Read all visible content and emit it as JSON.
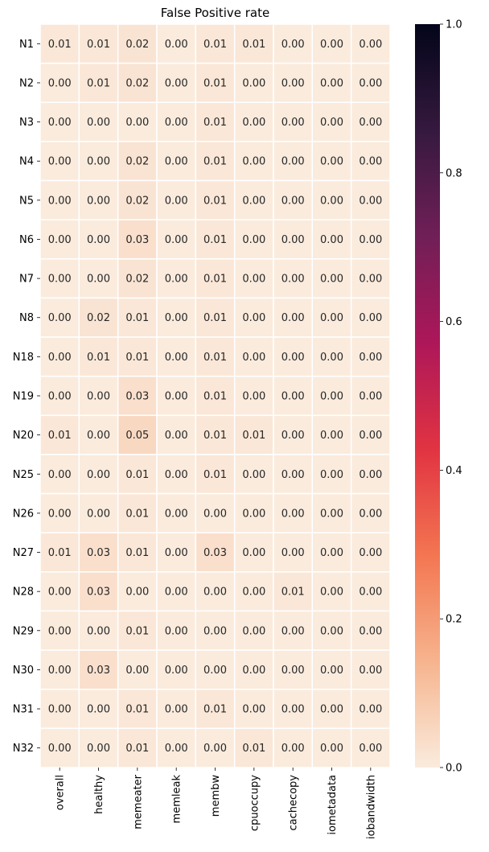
{
  "chart_data": {
    "type": "heatmap",
    "title": "False Positive rate",
    "rows": [
      "N1",
      "N2",
      "N3",
      "N4",
      "N5",
      "N6",
      "N7",
      "N8",
      "N18",
      "N19",
      "N20",
      "N25",
      "N26",
      "N27",
      "N28",
      "N29",
      "N30",
      "N31",
      "N32"
    ],
    "columns": [
      "overall",
      "healthy",
      "memeater",
      "memleak",
      "membw",
      "cpuoccupy",
      "cachecopy",
      "iometadata",
      "iobandwidth"
    ],
    "values": [
      [
        0.01,
        0.01,
        0.02,
        0.0,
        0.01,
        0.01,
        0.0,
        0.0,
        0.0
      ],
      [
        0.0,
        0.01,
        0.02,
        0.0,
        0.01,
        0.0,
        0.0,
        0.0,
        0.0
      ],
      [
        0.0,
        0.0,
        0.0,
        0.0,
        0.01,
        0.0,
        0.0,
        0.0,
        0.0
      ],
      [
        0.0,
        0.0,
        0.02,
        0.0,
        0.01,
        0.0,
        0.0,
        0.0,
        0.0
      ],
      [
        0.0,
        0.0,
        0.02,
        0.0,
        0.01,
        0.0,
        0.0,
        0.0,
        0.0
      ],
      [
        0.0,
        0.0,
        0.03,
        0.0,
        0.01,
        0.0,
        0.0,
        0.0,
        0.0
      ],
      [
        0.0,
        0.0,
        0.02,
        0.0,
        0.01,
        0.0,
        0.0,
        0.0,
        0.0
      ],
      [
        0.0,
        0.02,
        0.01,
        0.0,
        0.01,
        0.0,
        0.0,
        0.0,
        0.0
      ],
      [
        0.0,
        0.01,
        0.01,
        0.0,
        0.01,
        0.0,
        0.0,
        0.0,
        0.0
      ],
      [
        0.0,
        0.0,
        0.03,
        0.0,
        0.01,
        0.0,
        0.0,
        0.0,
        0.0
      ],
      [
        0.01,
        0.0,
        0.05,
        0.0,
        0.01,
        0.01,
        0.0,
        0.0,
        0.0
      ],
      [
        0.0,
        0.0,
        0.01,
        0.0,
        0.01,
        0.0,
        0.0,
        0.0,
        0.0
      ],
      [
        0.0,
        0.0,
        0.01,
        0.0,
        0.0,
        0.0,
        0.0,
        0.0,
        0.0
      ],
      [
        0.01,
        0.03,
        0.01,
        0.0,
        0.03,
        0.0,
        0.0,
        0.0,
        0.0
      ],
      [
        0.0,
        0.03,
        0.0,
        0.0,
        0.0,
        0.0,
        0.01,
        0.0,
        0.0
      ],
      [
        0.0,
        0.0,
        0.01,
        0.0,
        0.0,
        0.0,
        0.0,
        0.0,
        0.0
      ],
      [
        0.0,
        0.03,
        0.0,
        0.0,
        0.0,
        0.0,
        0.0,
        0.0,
        0.0
      ],
      [
        0.0,
        0.0,
        0.01,
        0.0,
        0.01,
        0.0,
        0.0,
        0.0,
        0.0
      ],
      [
        0.0,
        0.0,
        0.01,
        0.0,
        0.0,
        0.01,
        0.0,
        0.0,
        0.0
      ]
    ],
    "value_format": "0.00",
    "colorbar": {
      "range": [
        0.0,
        1.0
      ],
      "ticks": [
        0.0,
        0.2,
        0.4,
        0.6,
        0.8,
        1.0
      ],
      "tick_labels": [
        "0.0",
        "0.2",
        "0.4",
        "0.6",
        "0.8",
        "1.0"
      ],
      "colormap": "rocket_r"
    },
    "colormap_stops": [
      "#faebdd",
      "#f6b48e",
      "#f37651",
      "#e13342",
      "#ad1759",
      "#701f57",
      "#35193e",
      "#03051a"
    ],
    "cell_border_color": "#ffffff",
    "grid": false,
    "legend": "colorbar-right"
  }
}
